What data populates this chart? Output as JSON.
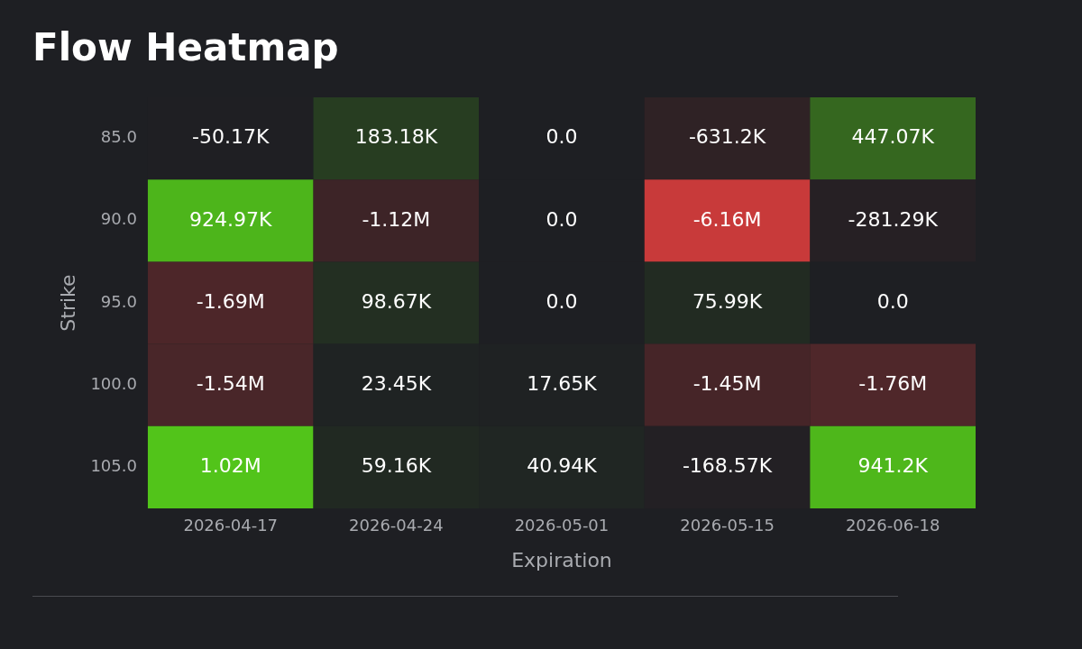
{
  "chart_data": {
    "type": "heatmap",
    "title": "Flow Heatmap",
    "xlabel": "Expiration",
    "ylabel": "Strike",
    "categories": [
      "2026-04-17",
      "2026-04-24",
      "2026-05-01",
      "2026-05-15",
      "2026-06-18"
    ],
    "y_categories": [
      "85.0",
      "90.0",
      "95.0",
      "100.0",
      "105.0"
    ],
    "cells": [
      [
        -50170,
        183180,
        0,
        -631200,
        447070
      ],
      [
        924970,
        -1120000,
        0,
        -6160000,
        -281290
      ],
      [
        -1690000,
        98670,
        0,
        75990,
        0
      ],
      [
        -1540000,
        23450,
        17650,
        -1450000,
        -1760000
      ],
      [
        1020000,
        59160,
        40940,
        -168570,
        941200
      ]
    ],
    "cell_labels": [
      [
        "-50.17K",
        "183.18K",
        "0.0",
        "-631.2K",
        "447.07K"
      ],
      [
        "924.97K",
        "-1.12M",
        "0.0",
        "-6.16M",
        "-281.29K"
      ],
      [
        "-1.69M",
        "98.67K",
        "0.0",
        "75.99K",
        "0.0"
      ],
      [
        "-1.54M",
        "23.45K",
        "17.65K",
        "-1.45M",
        "-1.76M"
      ],
      [
        "1.02M",
        "59.16K",
        "40.94K",
        "-168.57K",
        "941.2K"
      ]
    ]
  }
}
